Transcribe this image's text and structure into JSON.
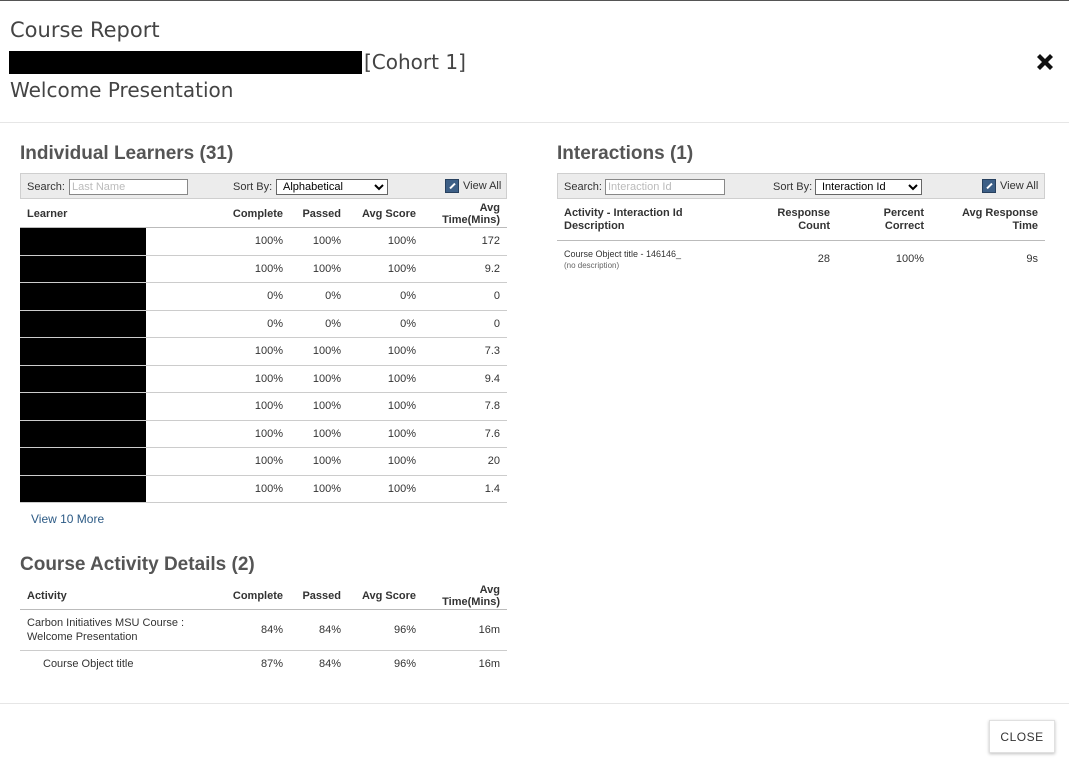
{
  "header": {
    "title": "Course Report",
    "cohort": "[Cohort 1]",
    "subtitle": "Welcome Presentation"
  },
  "learners": {
    "title": "Individual Learners (31)",
    "search_label": "Search:",
    "search_placeholder": "Last Name",
    "sort_label": "Sort By:",
    "sort_value": "Alphabetical",
    "view_all": "View All",
    "columns": [
      "Learner",
      "Complete",
      "Passed",
      "Avg Score",
      "Avg Time(Mins)"
    ],
    "rows": [
      {
        "complete": "100%",
        "passed": "100%",
        "score": "100%",
        "time": "172"
      },
      {
        "complete": "100%",
        "passed": "100%",
        "score": "100%",
        "time": "9.2"
      },
      {
        "complete": "0%",
        "passed": "0%",
        "score": "0%",
        "time": "0"
      },
      {
        "complete": "0%",
        "passed": "0%",
        "score": "0%",
        "time": "0"
      },
      {
        "complete": "100%",
        "passed": "100%",
        "score": "100%",
        "time": "7.3"
      },
      {
        "complete": "100%",
        "passed": "100%",
        "score": "100%",
        "time": "9.4"
      },
      {
        "complete": "100%",
        "passed": "100%",
        "score": "100%",
        "time": "7.8"
      },
      {
        "complete": "100%",
        "passed": "100%",
        "score": "100%",
        "time": "7.6"
      },
      {
        "complete": "100%",
        "passed": "100%",
        "score": "100%",
        "time": "20"
      },
      {
        "complete": "100%",
        "passed": "100%",
        "score": "100%",
        "time": "1.4"
      }
    ],
    "view_more": "View 10 More"
  },
  "activity": {
    "title": "Course Activity Details (2)",
    "columns": [
      "Activity",
      "Complete",
      "Passed",
      "Avg Score",
      "Avg Time(Mins)"
    ],
    "rows": [
      {
        "name": "Carbon Initiatives MSU Course : Welcome Presentation",
        "complete": "84%",
        "passed": "84%",
        "score": "96%",
        "time": "16m"
      },
      {
        "name": "Course Object title",
        "complete": "87%",
        "passed": "84%",
        "score": "96%",
        "time": "16m"
      }
    ]
  },
  "interactions": {
    "title": "Interactions (1)",
    "search_label": "Search:",
    "search_placeholder": "Interaction Id",
    "sort_label": "Sort By:",
    "sort_value": "Interaction Id",
    "view_all": "View All",
    "col_activity_1": "Activity - Interaction Id",
    "col_activity_2": "Description",
    "col_count_1": "Response",
    "col_count_2": "Count",
    "col_percent_1": "Percent",
    "col_percent_2": "Correct",
    "col_time_1": "Avg Response",
    "col_time_2": "Time",
    "rows": [
      {
        "name": "Course Object title - 146146_",
        "desc": "(no description)",
        "count": "28",
        "percent": "100%",
        "time": "9s"
      }
    ]
  },
  "footer": {
    "close_label": "CLOSE"
  },
  "colors": {
    "accent": "#3d5f86",
    "link": "#2c5a85"
  },
  "icons": {
    "close": "close-icon",
    "view_all": "view-all-icon"
  }
}
